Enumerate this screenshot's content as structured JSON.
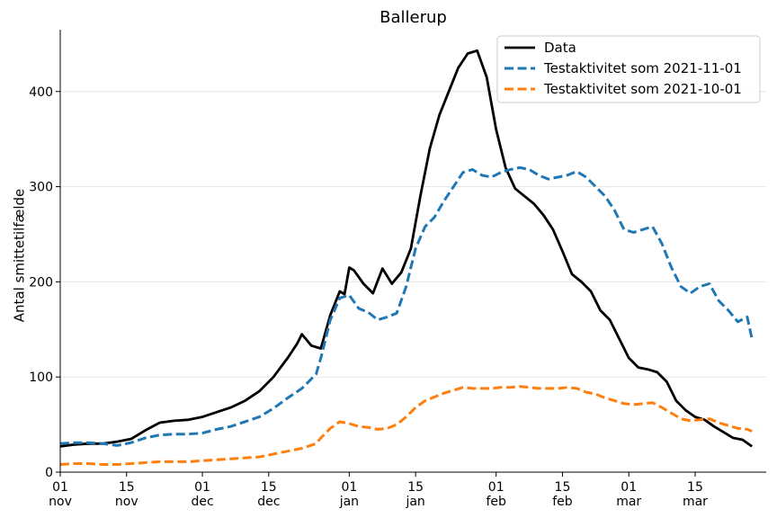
{
  "chart_data": {
    "type": "line",
    "title": "Ballerup",
    "xlabel": "",
    "ylabel": "Antal smittetilfælde",
    "x_start": "2021-11-01",
    "x_end": "2022-03-27",
    "ylim": [
      0,
      465
    ],
    "y_ticks": [
      0,
      100,
      200,
      300,
      400
    ],
    "x_ticks": [
      {
        "date": "2021-11-01",
        "day": "01",
        "month": "nov"
      },
      {
        "date": "2021-11-15",
        "day": "15",
        "month": "nov"
      },
      {
        "date": "2021-12-01",
        "day": "01",
        "month": "dec"
      },
      {
        "date": "2021-12-15",
        "day": "15",
        "month": "dec"
      },
      {
        "date": "2022-01-01",
        "day": "01",
        "month": "jan"
      },
      {
        "date": "2022-01-15",
        "day": "15",
        "month": "jan"
      },
      {
        "date": "2022-02-01",
        "day": "01",
        "month": "feb"
      },
      {
        "date": "2022-02-15",
        "day": "15",
        "month": "feb"
      },
      {
        "date": "2022-03-01",
        "day": "01",
        "month": "mar"
      },
      {
        "date": "2022-03-15",
        "day": "15",
        "month": "mar"
      }
    ],
    "grid": "horizontal",
    "legend_position": "top-right",
    "series": [
      {
        "name": "Data",
        "color": "#000000",
        "style": "solid",
        "points": [
          [
            "2021-11-01",
            27
          ],
          [
            "2021-11-04",
            29
          ],
          [
            "2021-11-07",
            30
          ],
          [
            "2021-11-10",
            30
          ],
          [
            "2021-11-13",
            32
          ],
          [
            "2021-11-16",
            35
          ],
          [
            "2021-11-19",
            44
          ],
          [
            "2021-11-22",
            52
          ],
          [
            "2021-11-25",
            54
          ],
          [
            "2021-11-28",
            55
          ],
          [
            "2021-12-01",
            58
          ],
          [
            "2021-12-04",
            63
          ],
          [
            "2021-12-07",
            68
          ],
          [
            "2021-12-10",
            75
          ],
          [
            "2021-12-13",
            85
          ],
          [
            "2021-12-16",
            100
          ],
          [
            "2021-12-19",
            120
          ],
          [
            "2021-12-21",
            135
          ],
          [
            "2021-12-22",
            145
          ],
          [
            "2021-12-24",
            133
          ],
          [
            "2021-12-26",
            130
          ],
          [
            "2021-12-28",
            165
          ],
          [
            "2021-12-30",
            190
          ],
          [
            "2021-12-31",
            187
          ],
          [
            "2022-01-01",
            215
          ],
          [
            "2022-01-02",
            212
          ],
          [
            "2022-01-04",
            198
          ],
          [
            "2022-01-06",
            188
          ],
          [
            "2022-01-08",
            214
          ],
          [
            "2022-01-10",
            198
          ],
          [
            "2022-01-12",
            210
          ],
          [
            "2022-01-14",
            235
          ],
          [
            "2022-01-16",
            290
          ],
          [
            "2022-01-18",
            340
          ],
          [
            "2022-01-20",
            375
          ],
          [
            "2022-01-22",
            400
          ],
          [
            "2022-01-24",
            425
          ],
          [
            "2022-01-26",
            440
          ],
          [
            "2022-01-28",
            443
          ],
          [
            "2022-01-30",
            415
          ],
          [
            "2022-02-01",
            360
          ],
          [
            "2022-02-03",
            320
          ],
          [
            "2022-02-05",
            298
          ],
          [
            "2022-02-07",
            290
          ],
          [
            "2022-02-09",
            282
          ],
          [
            "2022-02-11",
            270
          ],
          [
            "2022-02-13",
            255
          ],
          [
            "2022-02-15",
            232
          ],
          [
            "2022-02-17",
            208
          ],
          [
            "2022-02-19",
            200
          ],
          [
            "2022-02-21",
            190
          ],
          [
            "2022-02-23",
            170
          ],
          [
            "2022-02-25",
            160
          ],
          [
            "2022-02-27",
            140
          ],
          [
            "2022-03-01",
            120
          ],
          [
            "2022-03-03",
            110
          ],
          [
            "2022-03-05",
            108
          ],
          [
            "2022-03-07",
            105
          ],
          [
            "2022-03-09",
            95
          ],
          [
            "2022-03-11",
            75
          ],
          [
            "2022-03-13",
            65
          ],
          [
            "2022-03-15",
            58
          ],
          [
            "2022-03-17",
            55
          ],
          [
            "2022-03-19",
            48
          ],
          [
            "2022-03-21",
            42
          ],
          [
            "2022-03-23",
            36
          ],
          [
            "2022-03-25",
            34
          ],
          [
            "2022-03-27",
            27
          ]
        ]
      },
      {
        "name": "Testaktivitet som 2021-11-01",
        "color": "#1f77b4",
        "style": "dashed",
        "points": [
          [
            "2021-11-01",
            30
          ],
          [
            "2021-11-04",
            31
          ],
          [
            "2021-11-07",
            31
          ],
          [
            "2021-11-10",
            30
          ],
          [
            "2021-11-13",
            28
          ],
          [
            "2021-11-16",
            31
          ],
          [
            "2021-11-19",
            36
          ],
          [
            "2021-11-22",
            39
          ],
          [
            "2021-11-25",
            40
          ],
          [
            "2021-11-28",
            40
          ],
          [
            "2021-12-01",
            41
          ],
          [
            "2021-12-04",
            45
          ],
          [
            "2021-12-07",
            48
          ],
          [
            "2021-12-10",
            53
          ],
          [
            "2021-12-13",
            58
          ],
          [
            "2021-12-16",
            67
          ],
          [
            "2021-12-19",
            78
          ],
          [
            "2021-12-22",
            88
          ],
          [
            "2021-12-25",
            103
          ],
          [
            "2021-12-26",
            120
          ],
          [
            "2021-12-28",
            160
          ],
          [
            "2021-12-30",
            183
          ],
          [
            "2022-01-01",
            186
          ],
          [
            "2022-01-03",
            172
          ],
          [
            "2022-01-05",
            168
          ],
          [
            "2022-01-07",
            160
          ],
          [
            "2022-01-09",
            163
          ],
          [
            "2022-01-11",
            167
          ],
          [
            "2022-01-13",
            195
          ],
          [
            "2022-01-15",
            235
          ],
          [
            "2022-01-17",
            258
          ],
          [
            "2022-01-19",
            268
          ],
          [
            "2022-01-21",
            285
          ],
          [
            "2022-01-23",
            300
          ],
          [
            "2022-01-25",
            315
          ],
          [
            "2022-01-27",
            318
          ],
          [
            "2022-01-29",
            312
          ],
          [
            "2022-01-31",
            310
          ],
          [
            "2022-02-02",
            315
          ],
          [
            "2022-02-04",
            318
          ],
          [
            "2022-02-06",
            320
          ],
          [
            "2022-02-08",
            318
          ],
          [
            "2022-02-10",
            312
          ],
          [
            "2022-02-12",
            308
          ],
          [
            "2022-02-14",
            310
          ],
          [
            "2022-02-16",
            312
          ],
          [
            "2022-02-18",
            316
          ],
          [
            "2022-02-20",
            310
          ],
          [
            "2022-02-22",
            300
          ],
          [
            "2022-02-24",
            290
          ],
          [
            "2022-02-26",
            275
          ],
          [
            "2022-02-28",
            255
          ],
          [
            "2022-03-02",
            252
          ],
          [
            "2022-03-04",
            255
          ],
          [
            "2022-03-06",
            258
          ],
          [
            "2022-03-08",
            240
          ],
          [
            "2022-03-10",
            215
          ],
          [
            "2022-03-12",
            195
          ],
          [
            "2022-03-14",
            188
          ],
          [
            "2022-03-16",
            195
          ],
          [
            "2022-03-18",
            198
          ],
          [
            "2022-03-20",
            180
          ],
          [
            "2022-03-22",
            170
          ],
          [
            "2022-03-24",
            158
          ],
          [
            "2022-03-26",
            163
          ],
          [
            "2022-03-27",
            140
          ]
        ]
      },
      {
        "name": "Testaktivitet som 2021-10-01",
        "color": "#ff7f0e",
        "style": "dashed",
        "points": [
          [
            "2021-11-01",
            8
          ],
          [
            "2021-11-04",
            9
          ],
          [
            "2021-11-07",
            9
          ],
          [
            "2021-11-10",
            8
          ],
          [
            "2021-11-13",
            8
          ],
          [
            "2021-11-16",
            9
          ],
          [
            "2021-11-19",
            10
          ],
          [
            "2021-11-22",
            11
          ],
          [
            "2021-11-25",
            11
          ],
          [
            "2021-11-28",
            11
          ],
          [
            "2021-12-01",
            12
          ],
          [
            "2021-12-04",
            13
          ],
          [
            "2021-12-07",
            14
          ],
          [
            "2021-12-10",
            15
          ],
          [
            "2021-12-13",
            16
          ],
          [
            "2021-12-16",
            19
          ],
          [
            "2021-12-19",
            22
          ],
          [
            "2021-12-22",
            25
          ],
          [
            "2021-12-25",
            30
          ],
          [
            "2021-12-26",
            36
          ],
          [
            "2021-12-28",
            46
          ],
          [
            "2021-12-30",
            53
          ],
          [
            "2022-01-01",
            51
          ],
          [
            "2022-01-03",
            48
          ],
          [
            "2022-01-05",
            47
          ],
          [
            "2022-01-07",
            45
          ],
          [
            "2022-01-09",
            46
          ],
          [
            "2022-01-11",
            50
          ],
          [
            "2022-01-13",
            58
          ],
          [
            "2022-01-15",
            68
          ],
          [
            "2022-01-17",
            75
          ],
          [
            "2022-01-19",
            79
          ],
          [
            "2022-01-21",
            83
          ],
          [
            "2022-01-23",
            86
          ],
          [
            "2022-01-25",
            89
          ],
          [
            "2022-01-27",
            88
          ],
          [
            "2022-01-29",
            88
          ],
          [
            "2022-01-31",
            88
          ],
          [
            "2022-02-02",
            89
          ],
          [
            "2022-02-04",
            89
          ],
          [
            "2022-02-06",
            90
          ],
          [
            "2022-02-08",
            89
          ],
          [
            "2022-02-10",
            88
          ],
          [
            "2022-02-12",
            88
          ],
          [
            "2022-02-14",
            88
          ],
          [
            "2022-02-16",
            89
          ],
          [
            "2022-02-18",
            88
          ],
          [
            "2022-02-20",
            84
          ],
          [
            "2022-02-22",
            82
          ],
          [
            "2022-02-24",
            78
          ],
          [
            "2022-02-26",
            75
          ],
          [
            "2022-02-28",
            72
          ],
          [
            "2022-03-02",
            71
          ],
          [
            "2022-03-04",
            72
          ],
          [
            "2022-03-06",
            73
          ],
          [
            "2022-03-08",
            68
          ],
          [
            "2022-03-10",
            62
          ],
          [
            "2022-03-12",
            56
          ],
          [
            "2022-03-14",
            54
          ],
          [
            "2022-03-16",
            55
          ],
          [
            "2022-03-18",
            56
          ],
          [
            "2022-03-20",
            52
          ],
          [
            "2022-03-22",
            49
          ],
          [
            "2022-03-24",
            46
          ],
          [
            "2022-03-26",
            45
          ],
          [
            "2022-03-27",
            43
          ]
        ]
      }
    ]
  }
}
